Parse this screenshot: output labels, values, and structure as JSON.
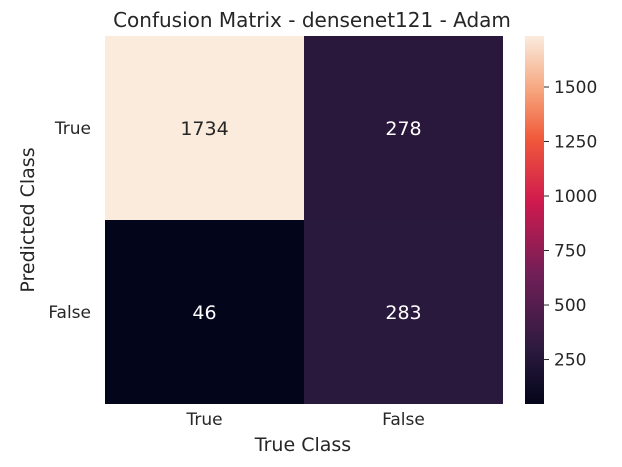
{
  "chart_data": {
    "type": "heatmap",
    "title": "Confusion Matrix - densenet121 - Adam",
    "xlabel": "True Class",
    "ylabel": "Predicted Class",
    "x_categories": [
      "True",
      "False"
    ],
    "y_categories": [
      "True",
      "False"
    ],
    "values": [
      [
        1734,
        278
      ],
      [
        46,
        283
      ]
    ],
    "colorbar": {
      "range": [
        46,
        1734
      ],
      "ticks": [
        250,
        500,
        750,
        1000,
        1250,
        1500
      ],
      "colormap": "rocket"
    },
    "grid": false,
    "colors": {
      "high": "#faebdd",
      "mid_high": "#f3784a",
      "mid": "#cf1a4e",
      "mid_low": "#5f1c52",
      "low": "#03051a"
    }
  }
}
